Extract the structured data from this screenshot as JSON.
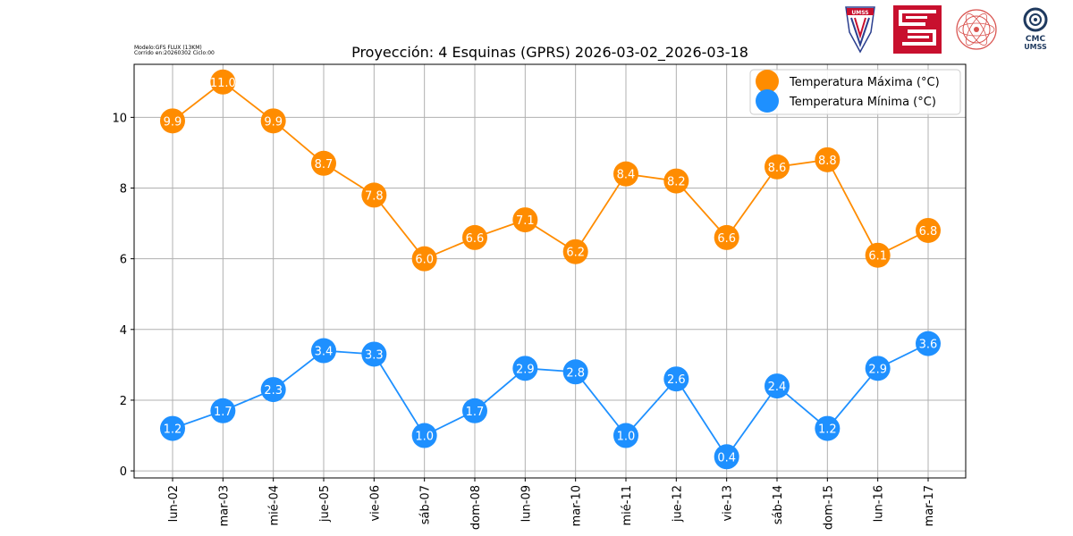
{
  "meta": {
    "model": "Modelo:GFS FLUX (13KM)",
    "run": "Corrido en:20260302 Ciclo:00"
  },
  "logos": {
    "umss_crest_text": "UMSS",
    "cmc_line1": "CMC",
    "cmc_line2": "UMSS"
  },
  "chart_data": {
    "type": "line",
    "title": "Proyección: 4 Esquinas (GPRS) 2026-03-02_2026-03-18",
    "xlabel": "",
    "ylabel": "",
    "categories": [
      "lun-02",
      "mar-03",
      "mié-04",
      "jue-05",
      "vie-06",
      "sáb-07",
      "dom-08",
      "lun-09",
      "mar-10",
      "mié-11",
      "jue-12",
      "vie-13",
      "sáb-14",
      "dom-15",
      "lun-16",
      "mar-17"
    ],
    "ylim": [
      -0.2,
      11.5
    ],
    "yticks": [
      0,
      2,
      4,
      6,
      8,
      10
    ],
    "grid": true,
    "legend_position": "top-right",
    "series": [
      {
        "name": "Temperatura Máxima  (°C)",
        "color": "#ff8c00",
        "values": [
          9.9,
          11.0,
          9.9,
          8.7,
          7.8,
          6.0,
          6.6,
          7.1,
          6.2,
          8.4,
          8.2,
          6.6,
          8.6,
          8.8,
          6.1,
          6.8
        ],
        "labels": [
          "9.9",
          "11.0",
          "9.9",
          "8.7",
          "7.8",
          "6.0",
          "6.6",
          "7.1",
          "6.2",
          "8.4",
          "8.2",
          "6.6",
          "8.6",
          "8.8",
          "6.1",
          "6.8"
        ]
      },
      {
        "name": "Temperatura Mínima  (°C)",
        "color": "#1e90ff",
        "values": [
          1.2,
          1.7,
          2.3,
          3.4,
          3.3,
          1.0,
          1.7,
          2.9,
          2.8,
          1.0,
          2.6,
          0.4,
          2.4,
          1.2,
          2.9,
          3.6
        ],
        "labels": [
          "1.2",
          "1.7",
          "2.3",
          "3.4",
          "3.3",
          "1.0",
          "1.7",
          "2.9",
          "2.8",
          "1.0",
          "2.6",
          "0.4",
          "2.4",
          "1.2",
          "2.9",
          "3.6"
        ]
      }
    ]
  }
}
